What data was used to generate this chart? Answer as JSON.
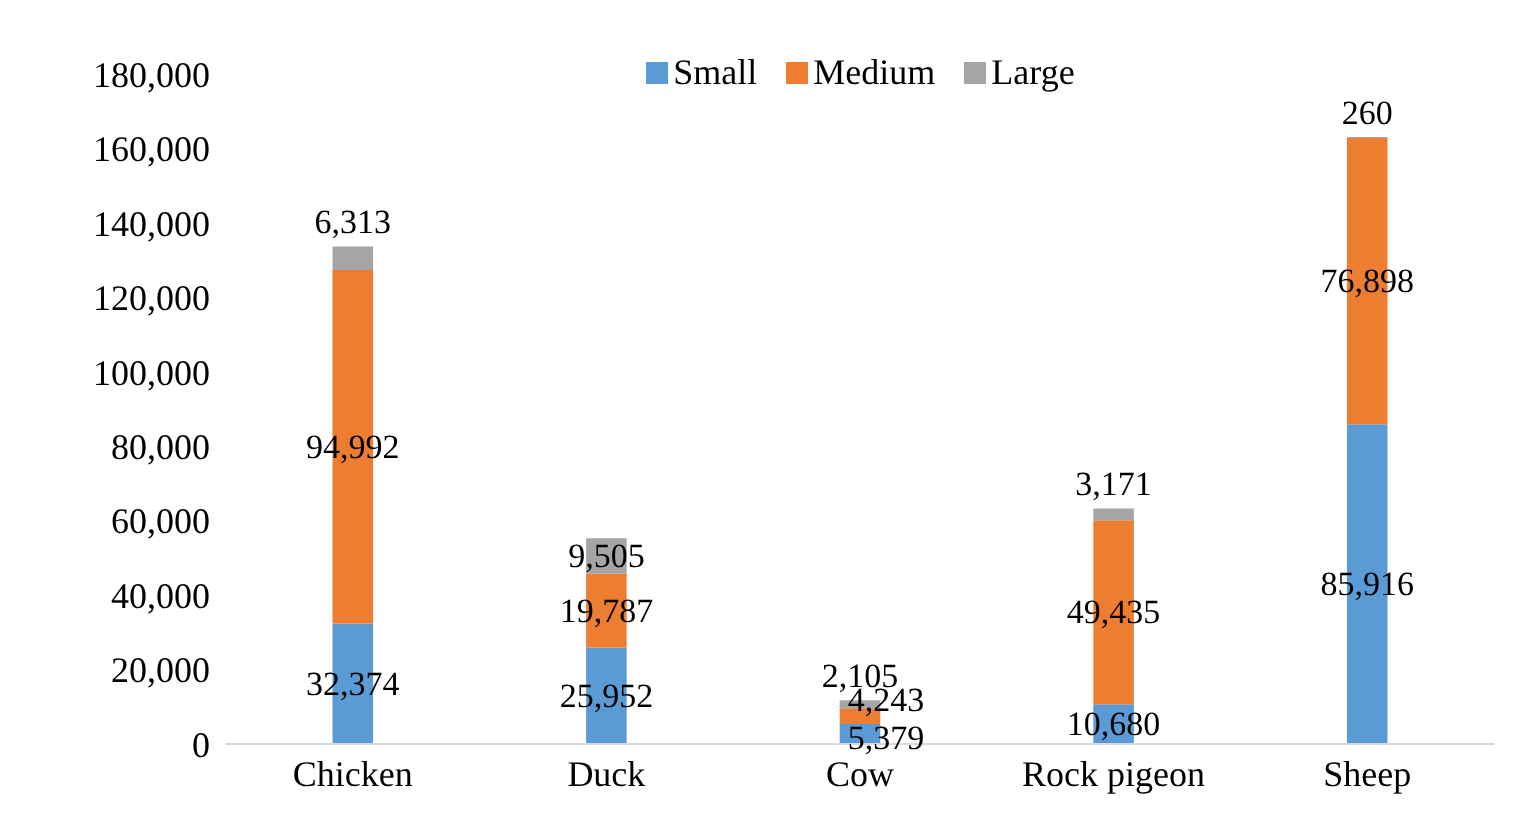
{
  "chart_data": {
    "type": "bar",
    "stacked": true,
    "categories": [
      "Chicken",
      "Duck",
      "Cow",
      "Rock pigeon",
      "Sheep"
    ],
    "series": [
      {
        "name": "Small",
        "color": "#5b9bd5",
        "values": [
          32374,
          25952,
          5379,
          10680,
          85916
        ],
        "value_labels": [
          "32,374",
          "25,952",
          "5,379",
          "10,680",
          "85,916"
        ]
      },
      {
        "name": "Medium",
        "color": "#ed7d31",
        "values": [
          94992,
          19787,
          4243,
          49435,
          76898
        ],
        "value_labels": [
          "94,992",
          "19,787",
          "4,243",
          "49,435",
          "76,898"
        ]
      },
      {
        "name": "Large",
        "color": "#a5a5a5",
        "values": [
          6313,
          9505,
          2105,
          3171,
          260
        ],
        "value_labels": [
          "6,313",
          "9,505",
          "2,105",
          "3,171",
          "260"
        ]
      }
    ],
    "ylim": [
      0,
      180000
    ],
    "yticks": [
      0,
      {
        "value": 20000,
        "label": "20,000"
      },
      {
        "value": 40000,
        "label": "40,000"
      },
      {
        "value": 60000,
        "label": "60,000"
      },
      {
        "value": 80000,
        "label": "80,000"
      },
      {
        "value": 100000,
        "label": "100,000"
      },
      {
        "value": 120000,
        "label": "120,000"
      },
      {
        "value": 140000,
        "label": "140,000"
      },
      {
        "value": 160000,
        "label": "160,000"
      },
      {
        "value": 180000,
        "label": "180,000"
      }
    ],
    "grid": false,
    "legend": "top"
  }
}
